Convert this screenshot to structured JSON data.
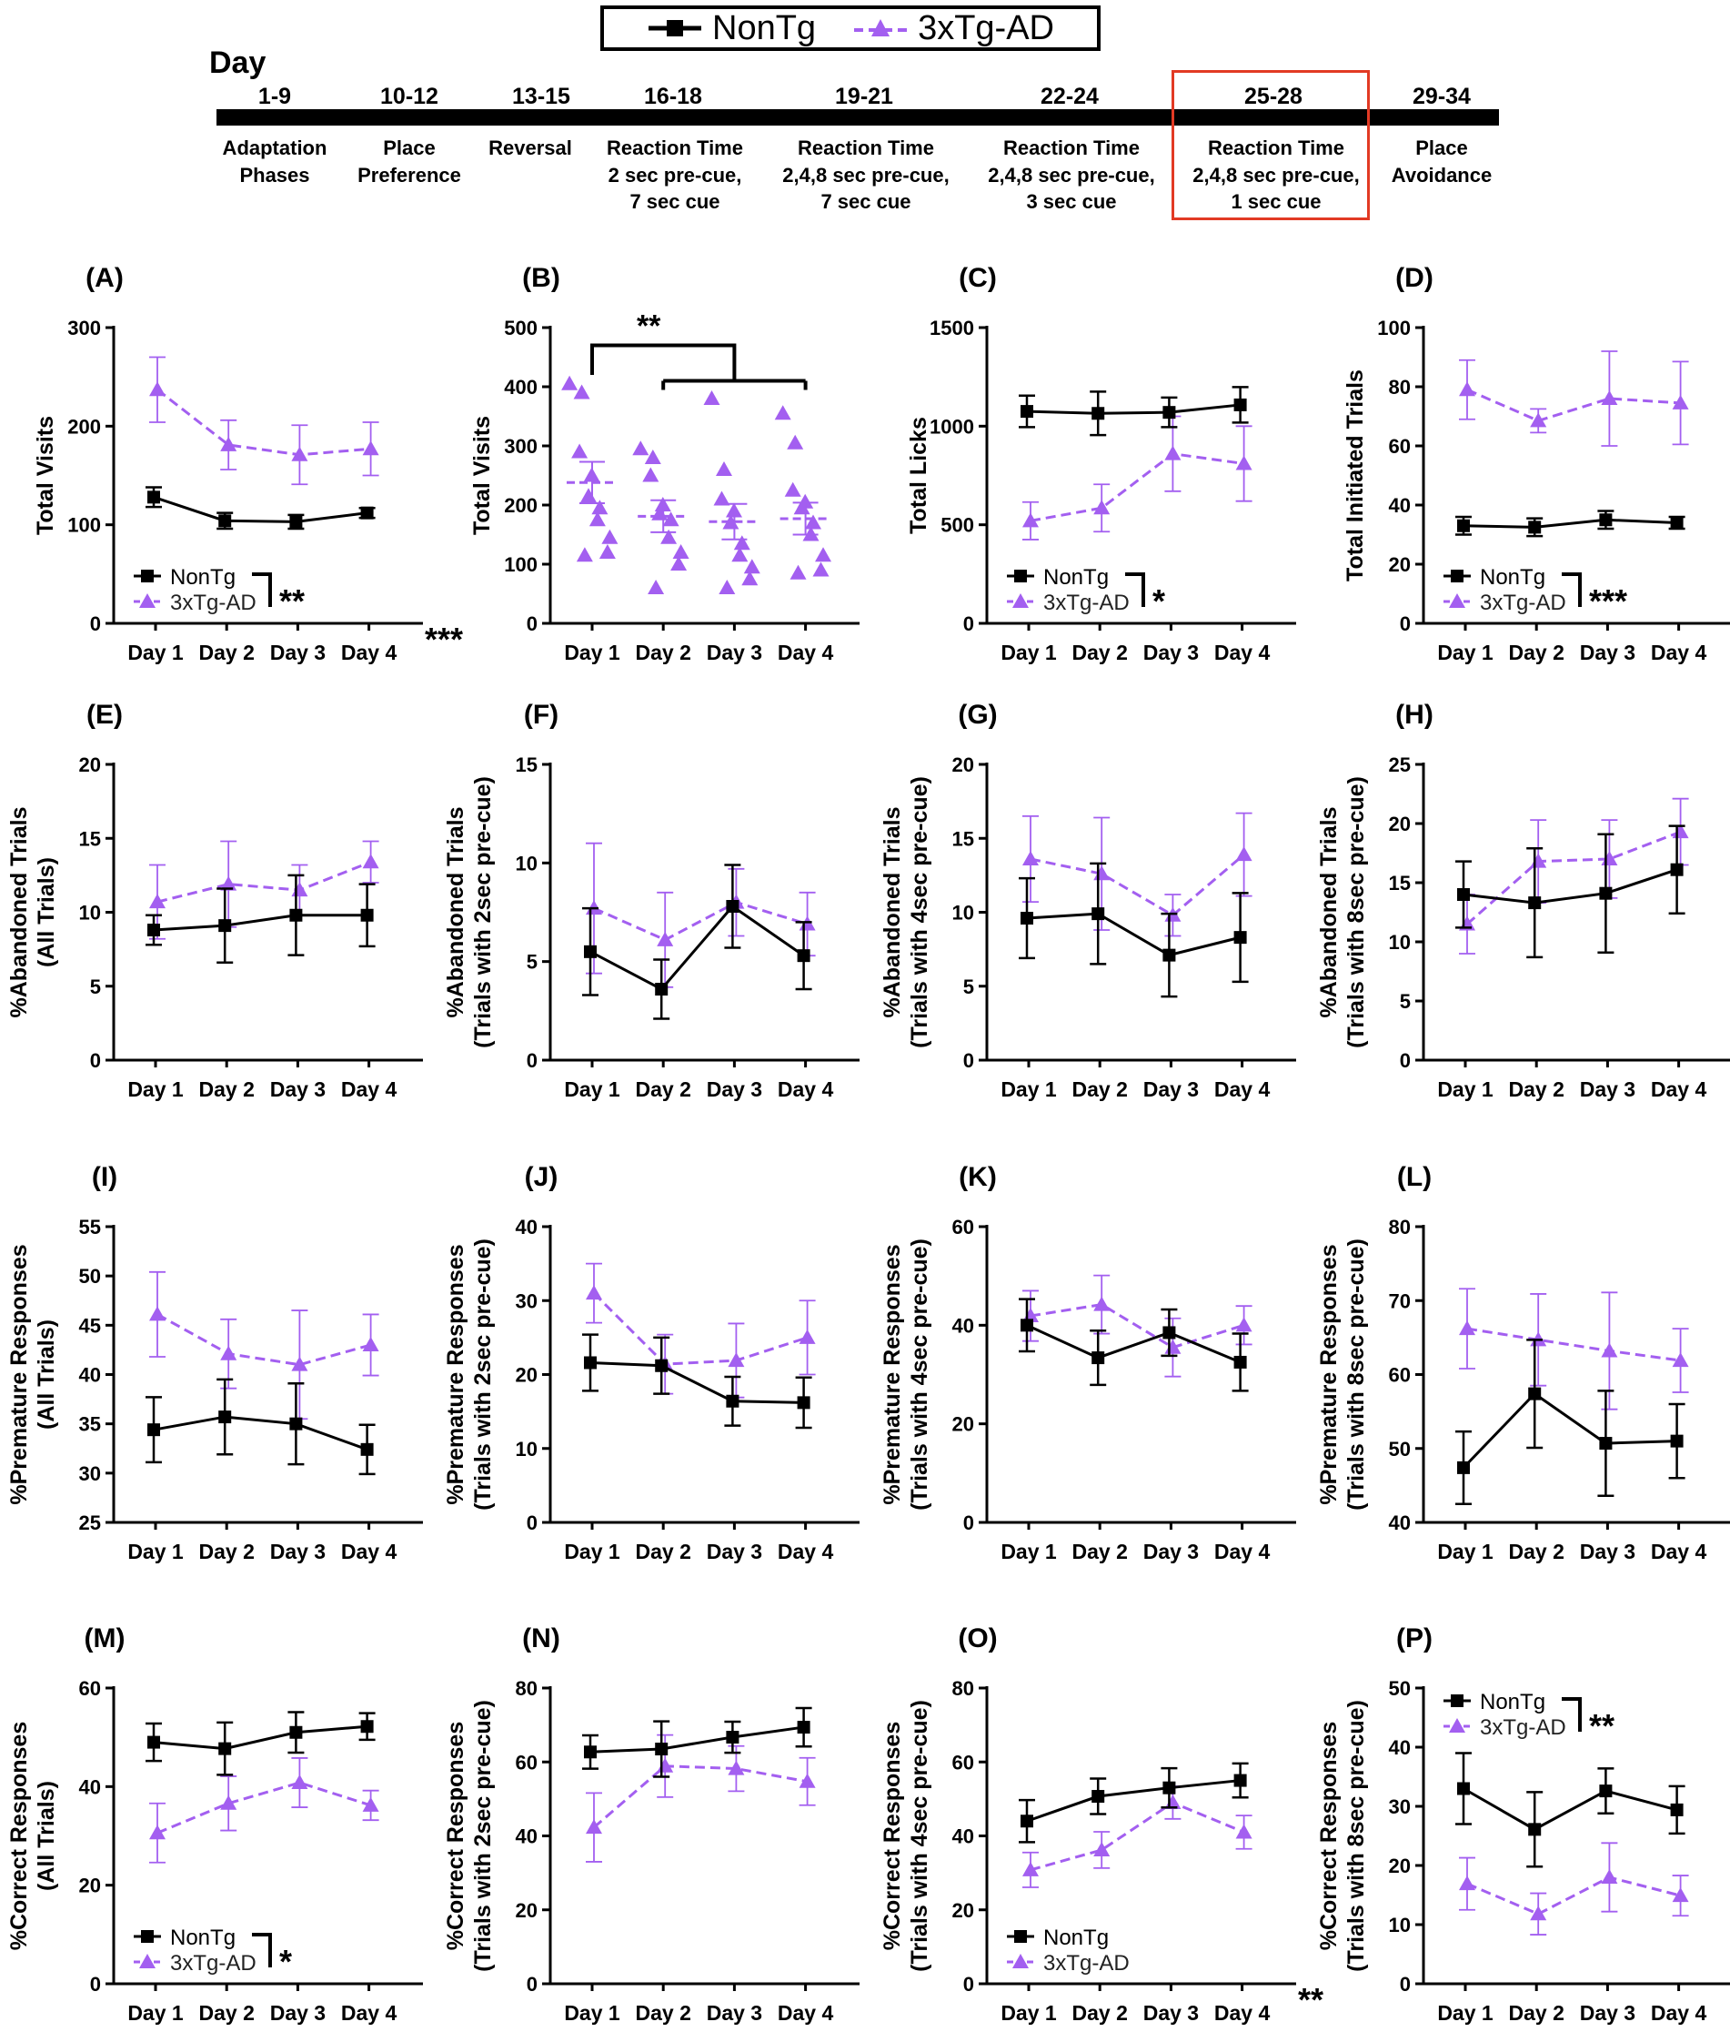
{
  "legend": {
    "nontg": "NonTg",
    "tg": "3xTg-AD",
    "colors": {
      "nontg": "#000000",
      "tg": "#a35ff0"
    }
  },
  "timeline": {
    "day_label": "Day",
    "phases": [
      {
        "range": "1-9",
        "desc": "Adaptation\nPhases"
      },
      {
        "range": "10-12",
        "desc": "Place\nPreference"
      },
      {
        "range": "13-15",
        "desc": "Reversal"
      },
      {
        "range": "16-18",
        "desc": "Reaction Time\n2 sec pre-cue,\n7 sec cue"
      },
      {
        "range": "19-21",
        "desc": "Reaction Time\n2,4,8 sec pre-cue,\n7 sec cue"
      },
      {
        "range": "22-24",
        "desc": "Reaction Time\n2,4,8 sec pre-cue,\n3 sec cue"
      },
      {
        "range": "25-28",
        "desc": "Reaction Time\n2,4,8 sec pre-cue,\n1 sec cue",
        "highlighted": true
      },
      {
        "range": "29-34",
        "desc": "Place\nAvoidance"
      }
    ]
  },
  "chart_data": [
    {
      "panel": "(A)",
      "type": "line",
      "ylabel": [
        "Total Visits"
      ],
      "yticks": [
        0,
        100,
        200,
        300
      ],
      "ylim": [
        0,
        300
      ],
      "categories": [
        "Day 1",
        "Day 2",
        "Day 3",
        "Day 4"
      ],
      "series": [
        {
          "name": "NonTg",
          "values": [
            128,
            104,
            103,
            112
          ],
          "err": [
            10,
            8,
            7,
            5
          ]
        },
        {
          "name": "3xTg-AD",
          "values": [
            237,
            181,
            171,
            177
          ],
          "err": [
            33,
            25,
            30,
            27
          ]
        }
      ],
      "legend_sig": "**",
      "corner_sig": "***"
    },
    {
      "panel": "(B)",
      "type": "scatter",
      "ylabel": [
        "Total Visits"
      ],
      "yticks": [
        0,
        100,
        200,
        300,
        400,
        500
      ],
      "ylim": [
        0,
        500
      ],
      "categories": [
        "Day 1",
        "Day 2",
        "Day 3",
        "Day 4"
      ],
      "points": [
        [
          405,
          390,
          290,
          250,
          215,
          195,
          175,
          145,
          120,
          115
        ],
        [
          295,
          280,
          250,
          200,
          185,
          175,
          145,
          120,
          100,
          60
        ],
        [
          380,
          260,
          210,
          190,
          170,
          135,
          115,
          95,
          75,
          60
        ],
        [
          355,
          305,
          225,
          205,
          195,
          170,
          150,
          115,
          90,
          85
        ]
      ],
      "means": [
        238,
        181,
        172,
        177
      ],
      "sem": [
        35,
        27,
        30,
        27
      ],
      "bracket_sig": "**"
    },
    {
      "panel": "(C)",
      "type": "line",
      "ylabel": [
        "Total Licks"
      ],
      "yticks": [
        0,
        500,
        1000,
        1500
      ],
      "ylim": [
        0,
        1500
      ],
      "categories": [
        "Day 1",
        "Day 2",
        "Day 3",
        "Day 4"
      ],
      "series": [
        {
          "name": "NonTg",
          "values": [
            1075,
            1065,
            1070,
            1108
          ],
          "err": [
            80,
            110,
            75,
            90
          ]
        },
        {
          "name": "3xTg-AD",
          "values": [
            520,
            585,
            860,
            810
          ],
          "err": [
            95,
            120,
            190,
            190
          ]
        }
      ],
      "legend_sig": "*"
    },
    {
      "panel": "(D)",
      "type": "line",
      "ylabel": [
        "Total Initiated Trials"
      ],
      "yticks": [
        0,
        20,
        40,
        60,
        80,
        100
      ],
      "ylim": [
        0,
        100
      ],
      "categories": [
        "Day 1",
        "Day 2",
        "Day 3",
        "Day 4"
      ],
      "series": [
        {
          "name": "NonTg",
          "values": [
            33,
            32.5,
            35,
            34
          ],
          "err": [
            3,
            3,
            3,
            2
          ]
        },
        {
          "name": "3xTg-AD",
          "values": [
            79,
            68.5,
            76,
            74.5
          ],
          "err": [
            10,
            4,
            16,
            14
          ]
        }
      ],
      "legend_sig": "***"
    },
    {
      "panel": "(E)",
      "type": "line",
      "ylabel": [
        "%Abandoned Trials",
        "(All Trials)"
      ],
      "yticks": [
        0,
        5,
        10,
        15,
        20
      ],
      "ylim": [
        0,
        20
      ],
      "categories": [
        "Day 1",
        "Day 2",
        "Day 3",
        "Day 4"
      ],
      "series": [
        {
          "name": "NonTg",
          "values": [
            8.8,
            9.1,
            9.8,
            9.8
          ],
          "err": [
            1,
            2.5,
            2.7,
            2.1
          ]
        },
        {
          "name": "3xTg-AD",
          "values": [
            10.7,
            11.9,
            11.5,
            13.4
          ],
          "err": [
            2.5,
            2.9,
            1.7,
            1.4
          ]
        }
      ]
    },
    {
      "panel": "(F)",
      "type": "line",
      "ylabel": [
        "%Abandoned Trials",
        "(Trials with 2sec pre-cue)"
      ],
      "yticks": [
        0,
        5,
        10,
        15
      ],
      "ylim": [
        0,
        15
      ],
      "categories": [
        "Day 1",
        "Day 2",
        "Day 3",
        "Day 4"
      ],
      "series": [
        {
          "name": "NonTg",
          "values": [
            5.5,
            3.6,
            7.8,
            5.3
          ],
          "err": [
            2.2,
            1.5,
            2.1,
            1.7
          ]
        },
        {
          "name": "3xTg-AD",
          "values": [
            7.7,
            6.1,
            8,
            6.9
          ],
          "err": [
            3.3,
            2.4,
            1.7,
            1.6
          ]
        }
      ]
    },
    {
      "panel": "(G)",
      "type": "line",
      "ylabel": [
        "%Abandoned Trials",
        "(Trials with 4sec pre-cue)"
      ],
      "yticks": [
        0,
        5,
        10,
        15,
        20
      ],
      "ylim": [
        0,
        20
      ],
      "categories": [
        "Day 1",
        "Day 2",
        "Day 3",
        "Day 4"
      ],
      "series": [
        {
          "name": "NonTg",
          "values": [
            9.6,
            9.9,
            7.1,
            8.3
          ],
          "err": [
            2.7,
            3.4,
            2.8,
            3
          ]
        },
        {
          "name": "3xTg-AD",
          "values": [
            13.6,
            12.6,
            9.8,
            13.9
          ],
          "err": [
            2.9,
            3.8,
            1.4,
            2.8
          ]
        }
      ]
    },
    {
      "panel": "(H)",
      "type": "line",
      "ylabel": [
        "%Abandoned Trials",
        "(Trials with 8sec pre-cue)"
      ],
      "yticks": [
        0,
        5,
        10,
        15,
        20,
        25
      ],
      "ylim": [
        0,
        25
      ],
      "categories": [
        "Day 1",
        "Day 2",
        "Day 3",
        "Day 4"
      ],
      "series": [
        {
          "name": "NonTg",
          "values": [
            14,
            13.3,
            14.1,
            16.1
          ],
          "err": [
            2.8,
            4.6,
            5,
            3.7
          ]
        },
        {
          "name": "3xTg-AD",
          "values": [
            11.5,
            16.8,
            17,
            19.3
          ],
          "err": [
            2.5,
            3.5,
            3.3,
            2.8
          ]
        }
      ]
    },
    {
      "panel": "(I)",
      "type": "line",
      "ylabel": [
        "%Premature Responses",
        "(All Trials)"
      ],
      "yticks": [
        25,
        30,
        35,
        40,
        45,
        50,
        55
      ],
      "ylim": [
        25,
        55
      ],
      "categories": [
        "Day 1",
        "Day 2",
        "Day 3",
        "Day 4"
      ],
      "series": [
        {
          "name": "NonTg",
          "values": [
            34.4,
            35.7,
            35,
            32.4
          ],
          "err": [
            3.3,
            3.8,
            4.1,
            2.5
          ]
        },
        {
          "name": "3xTg-AD",
          "values": [
            46.1,
            42.1,
            41,
            43
          ],
          "err": [
            4.3,
            3.5,
            5.5,
            3.1
          ]
        }
      ]
    },
    {
      "panel": "(J)",
      "type": "line",
      "ylabel": [
        "%Premature Responses",
        "(Trials with 2sec pre-cue)"
      ],
      "yticks": [
        0,
        10,
        20,
        30,
        40
      ],
      "ylim": [
        0,
        40
      ],
      "categories": [
        "Day 1",
        "Day 2",
        "Day 3",
        "Day 4"
      ],
      "series": [
        {
          "name": "NonTg",
          "values": [
            21.6,
            21.2,
            16.4,
            16.2
          ],
          "err": [
            3.8,
            3.8,
            3.3,
            3.4
          ]
        },
        {
          "name": "3xTg-AD",
          "values": [
            31,
            21.4,
            21.9,
            25
          ],
          "err": [
            4,
            4,
            5,
            5
          ]
        }
      ]
    },
    {
      "panel": "(K)",
      "type": "line",
      "ylabel": [
        "%Premature Responses",
        "(Trials with 4sec pre-cue)"
      ],
      "yticks": [
        0,
        20,
        40,
        60
      ],
      "ylim": [
        0,
        60
      ],
      "categories": [
        "Day 1",
        "Day 2",
        "Day 3",
        "Day 4"
      ],
      "series": [
        {
          "name": "NonTg",
          "values": [
            40,
            33.4,
            38.5,
            32.5
          ],
          "err": [
            5.3,
            5.5,
            4.7,
            5.8
          ]
        },
        {
          "name": "3xTg-AD",
          "values": [
            41.9,
            44.2,
            35.5,
            40
          ],
          "err": [
            5.1,
            5.9,
            5.9,
            3.9
          ]
        }
      ]
    },
    {
      "panel": "(L)",
      "type": "line",
      "ylabel": [
        "%Premature Responses",
        "(Trials with 8sec pre-cue)"
      ],
      "yticks": [
        40,
        50,
        60,
        70,
        80
      ],
      "ylim": [
        40,
        80
      ],
      "categories": [
        "Day 1",
        "Day 2",
        "Day 3",
        "Day 4"
      ],
      "series": [
        {
          "name": "NonTg",
          "values": [
            47.4,
            57.4,
            50.7,
            51
          ],
          "err": [
            4.9,
            7.3,
            7.1,
            5
          ]
        },
        {
          "name": "3xTg-AD",
          "values": [
            66.2,
            64.7,
            63.2,
            61.9
          ],
          "err": [
            5.4,
            6.2,
            7.9,
            4.3
          ]
        }
      ]
    },
    {
      "panel": "(M)",
      "type": "line",
      "ylabel": [
        "%Correct Responses",
        "(All Trials)"
      ],
      "yticks": [
        0,
        20,
        40,
        60
      ],
      "ylim": [
        0,
        60
      ],
      "categories": [
        "Day 1",
        "Day 2",
        "Day 3",
        "Day 4"
      ],
      "series": [
        {
          "name": "NonTg",
          "values": [
            49,
            47.7,
            51,
            52.2
          ],
          "err": [
            3.8,
            5.3,
            4.1,
            2.7
          ]
        },
        {
          "name": "3xTg-AD",
          "values": [
            30.6,
            36.6,
            40.8,
            36.2
          ],
          "err": [
            6,
            5.5,
            5,
            3
          ]
        }
      ],
      "legend_sig": "*"
    },
    {
      "panel": "(N)",
      "type": "line",
      "ylabel": [
        "%Correct Responses",
        "(Trials with 2sec pre-cue)"
      ],
      "yticks": [
        0,
        20,
        40,
        60,
        80
      ],
      "ylim": [
        0,
        80
      ],
      "categories": [
        "Day 1",
        "Day 2",
        "Day 3",
        "Day 4"
      ],
      "series": [
        {
          "name": "NonTg",
          "values": [
            62.7,
            63.5,
            66.7,
            69.4
          ],
          "err": [
            4.5,
            7.5,
            4.2,
            5.2
          ]
        },
        {
          "name": "3xTg-AD",
          "values": [
            42.3,
            58.9,
            58.2,
            54.7
          ],
          "err": [
            9.3,
            8.4,
            6.1,
            6.4
          ]
        }
      ]
    },
    {
      "panel": "(O)",
      "type": "line",
      "ylabel": [
        "%Correct Responses",
        "(Trials with 4sec pre-cue)"
      ],
      "yticks": [
        0,
        20,
        40,
        60,
        80
      ],
      "ylim": [
        0,
        80
      ],
      "categories": [
        "Day 1",
        "Day 2",
        "Day 3",
        "Day 4"
      ],
      "series": [
        {
          "name": "NonTg",
          "values": [
            44,
            50.7,
            53,
            55
          ],
          "err": [
            5.7,
            4.8,
            5.3,
            4.6
          ]
        },
        {
          "name": "3xTg-AD",
          "values": [
            30.8,
            36.2,
            49,
            41
          ],
          "err": [
            4.7,
            4.9,
            4.4,
            4.5
          ]
        }
      ],
      "corner_sig": "**"
    },
    {
      "panel": "(P)",
      "type": "line",
      "ylabel": [
        "%Correct Responses",
        "(Trials with 8sec pre-cue)"
      ],
      "yticks": [
        0,
        10,
        20,
        30,
        40,
        50
      ],
      "ylim": [
        0,
        50
      ],
      "categories": [
        "Day 1",
        "Day 2",
        "Day 3",
        "Day 4"
      ],
      "series": [
        {
          "name": "NonTg",
          "values": [
            33,
            26.1,
            32.6,
            29.4
          ],
          "err": [
            6,
            6.3,
            3.8,
            4
          ]
        },
        {
          "name": "3xTg-AD",
          "values": [
            16.9,
            11.8,
            18,
            14.9
          ],
          "err": [
            4.4,
            3.5,
            5.8,
            3.4
          ]
        }
      ],
      "legend_sig": "**"
    }
  ]
}
